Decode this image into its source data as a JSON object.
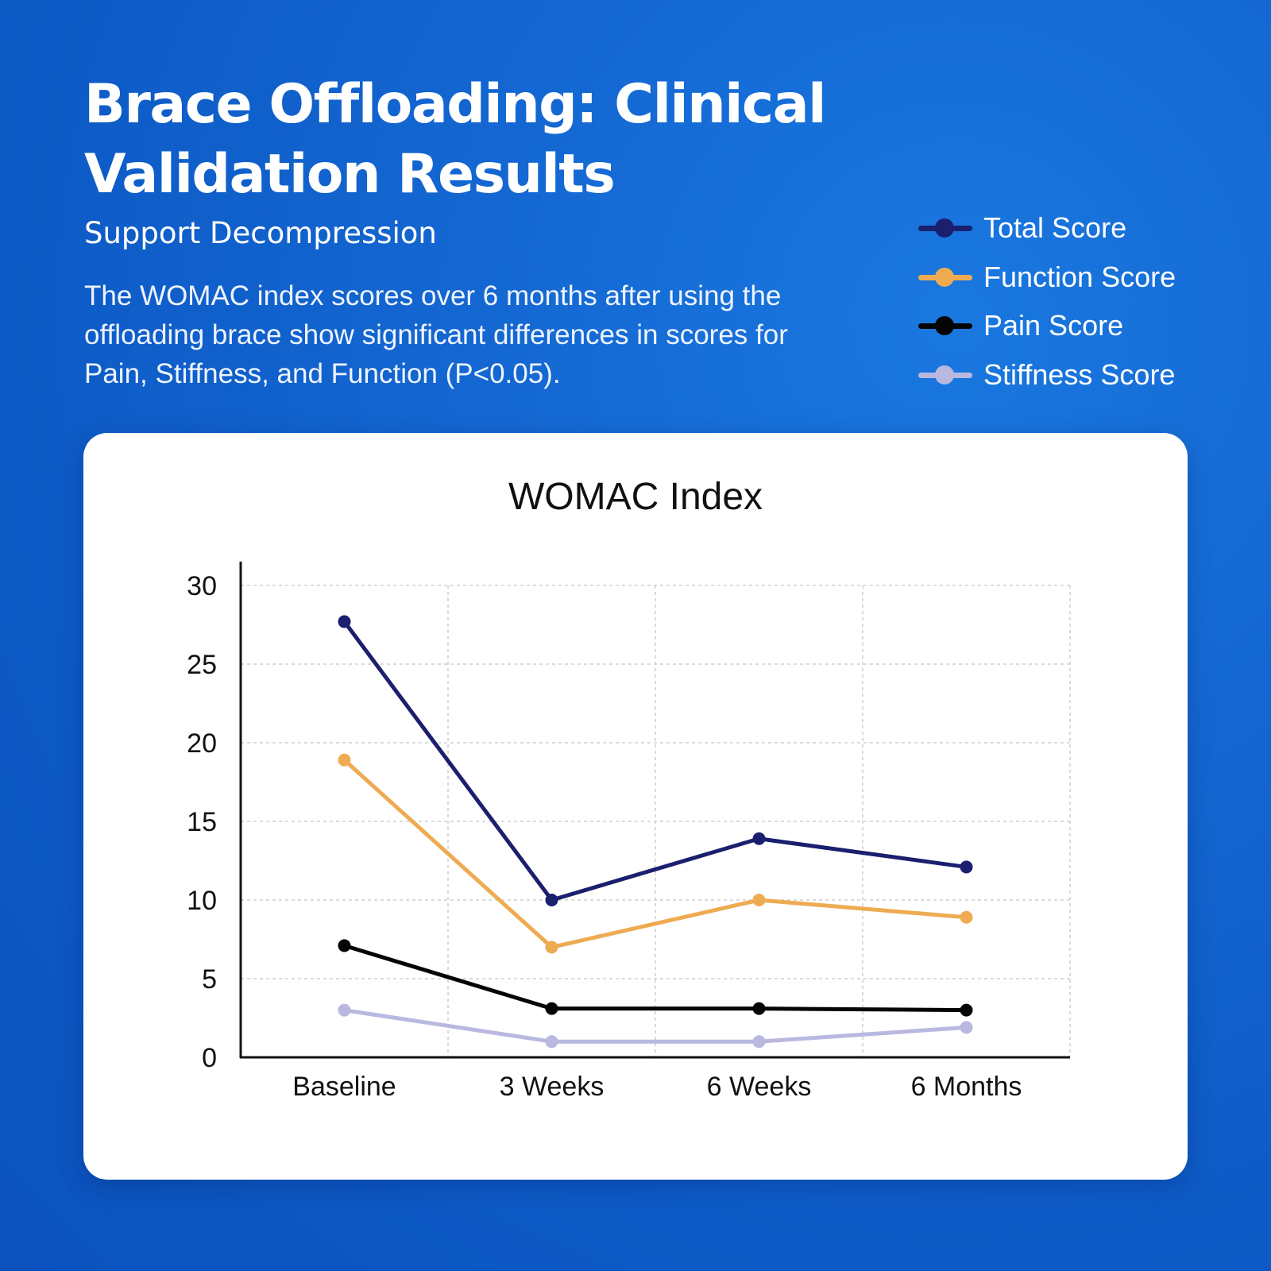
{
  "header": {
    "title": "Brace Offloading: Clinical Validation Results",
    "subtitle": "Support Decompression",
    "description": "The WOMAC index scores over 6 months after using the offloading brace show significant differences in scores for Pain, Stiffness, and Function (P<0.05)."
  },
  "legend": {
    "items": [
      {
        "label": "Total Score",
        "color": "#1a1f6e"
      },
      {
        "label": "Function Score",
        "color": "#eeab52"
      },
      {
        "label": "Pain Score",
        "color": "#050505"
      },
      {
        "label": "Stiffness Score",
        "color": "#b9b8e0"
      }
    ]
  },
  "chart_data": {
    "type": "line",
    "title": "WOMAC Index",
    "xlabel": "",
    "ylabel": "",
    "categories": [
      "Baseline",
      "3 Weeks",
      "6 Weeks",
      "6 Months"
    ],
    "ylim": [
      0,
      30
    ],
    "yticks": [
      0,
      5,
      10,
      15,
      20,
      25,
      30
    ],
    "grid": true,
    "grid_style": "dashed",
    "legend_position": "top-right, outside chart card",
    "series": [
      {
        "name": "Total Score",
        "color": "#1a1f6e",
        "values": [
          27.7,
          10.0,
          13.9,
          12.1
        ]
      },
      {
        "name": "Function Score",
        "color": "#eeab52",
        "values": [
          18.9,
          7.0,
          10.0,
          8.9
        ]
      },
      {
        "name": "Pain Score",
        "color": "#050505",
        "values": [
          7.1,
          3.1,
          3.1,
          3.0
        ]
      },
      {
        "name": "Stiffness Score",
        "color": "#b9b8e0",
        "values": [
          3.0,
          1.0,
          1.0,
          1.9
        ]
      }
    ]
  }
}
